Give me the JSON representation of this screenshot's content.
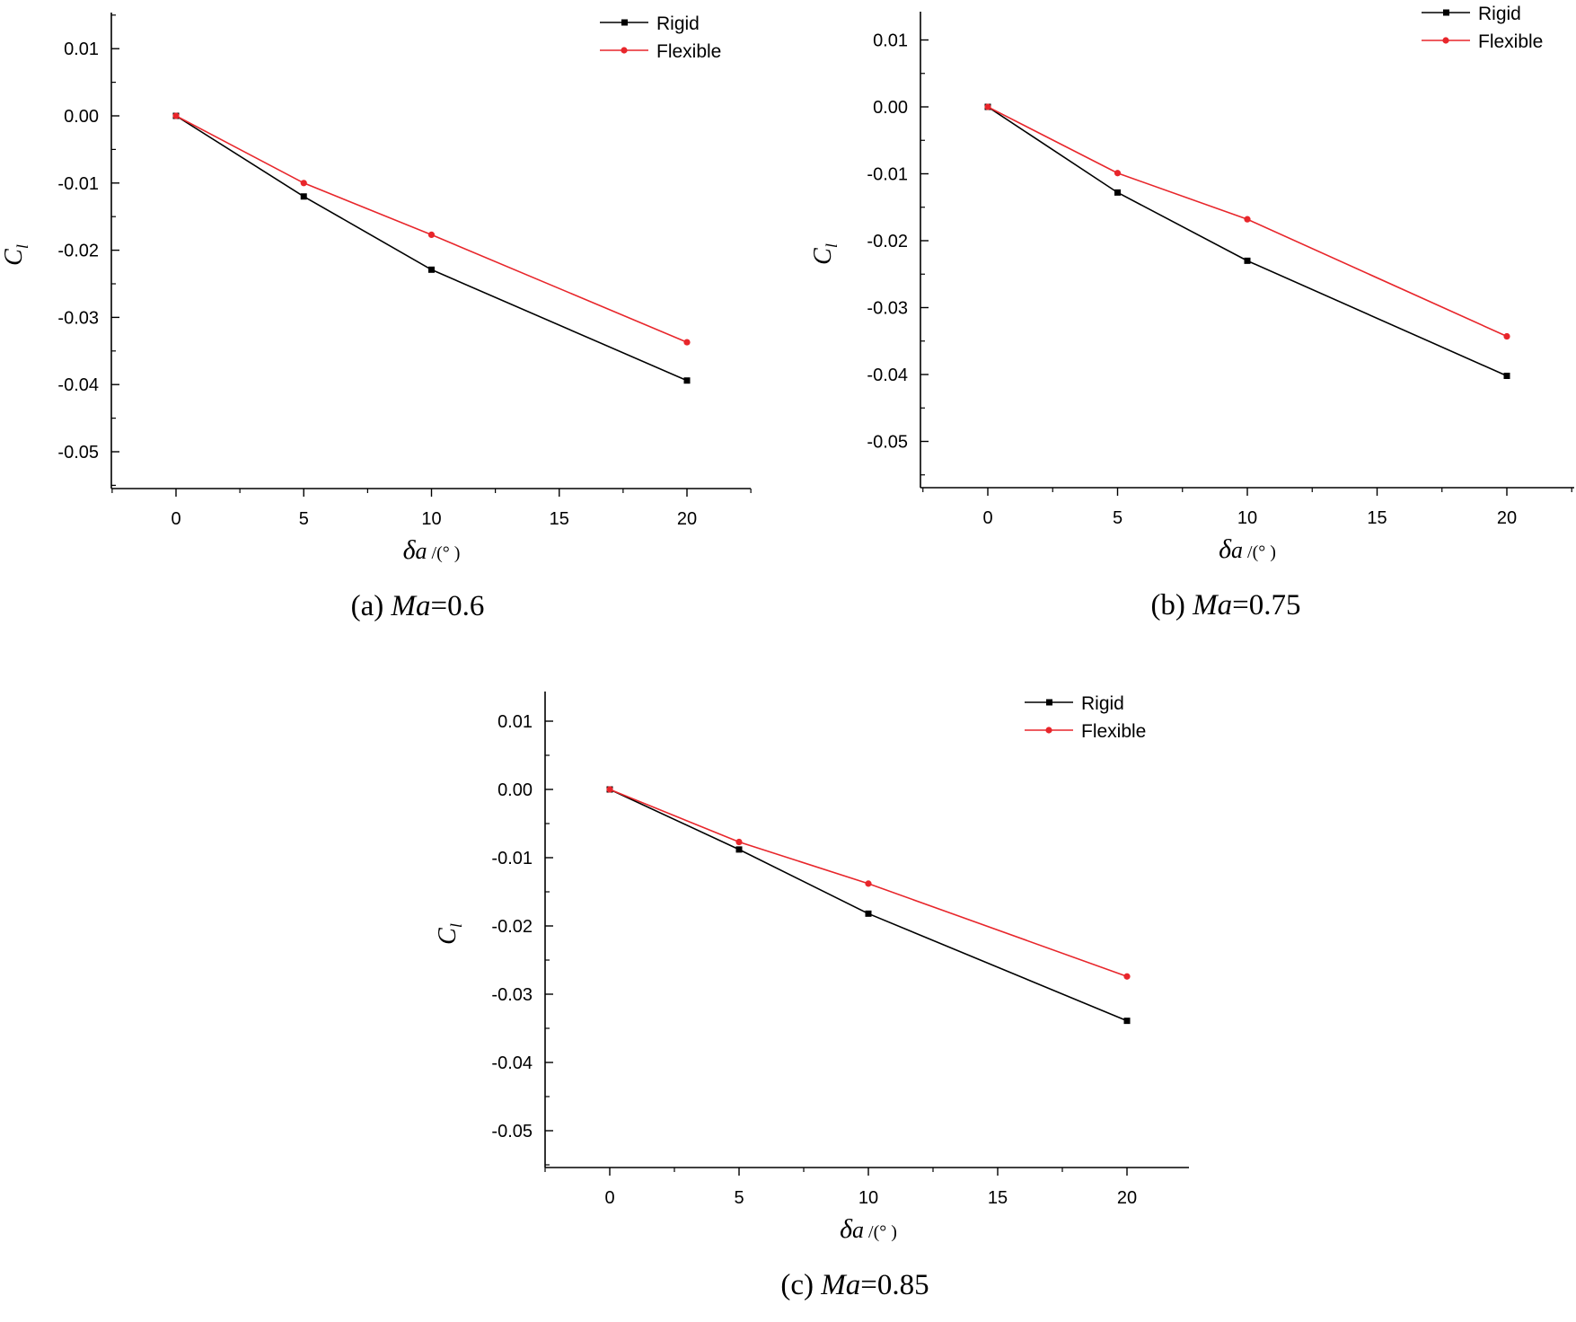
{
  "figure": {
    "panel_count": 3
  },
  "chart_data": [
    {
      "type": "line",
      "caption": {
        "prefix": "(a) ",
        "var": "Ma",
        "rest": "=0.6"
      },
      "xlabel": {
        "symbol": "δ",
        "sub": "a",
        "unit": " /(°  )"
      },
      "ylabel": {
        "symbol": "C",
        "sub": "l"
      },
      "xlim": [
        -2.5,
        22.5
      ],
      "ylim": [
        -0.055,
        0.015
      ],
      "xticks": [
        0,
        5,
        10,
        15,
        20
      ],
      "xtick_labels": [
        "0",
        "5",
        "10",
        "15",
        "20"
      ],
      "yticks": [
        0.01,
        0.0,
        -0.01,
        -0.02,
        -0.03,
        -0.04,
        -0.05
      ],
      "ytick_labels": [
        "0.01",
        "0.00",
        "-0.01",
        "-0.02",
        "-0.03",
        "-0.04",
        "-0.05"
      ],
      "legend_position": "top-right",
      "grid": false,
      "series": [
        {
          "name": "Rigid",
          "color": "#000000",
          "marker": "square",
          "x": [
            0,
            5,
            10,
            20
          ],
          "values": [
            0.0,
            -0.012,
            -0.0229,
            -0.0394
          ]
        },
        {
          "name": "Flexible",
          "color": "#e8262b",
          "marker": "circle",
          "x": [
            0,
            5,
            10,
            20
          ],
          "values": [
            0.0,
            -0.01,
            -0.0177,
            -0.0337
          ]
        }
      ]
    },
    {
      "type": "line",
      "caption": {
        "prefix": "(b) ",
        "var": "Ma",
        "rest": "=0.75"
      },
      "xlabel": {
        "symbol": "δ",
        "sub": "a",
        "unit": " /(°  )"
      },
      "ylabel": {
        "symbol": "C",
        "sub": "l"
      },
      "xlim": [
        -2.5,
        22.5
      ],
      "ylim": [
        -0.055,
        0.015
      ],
      "xticks": [
        0,
        5,
        10,
        15,
        20
      ],
      "xtick_labels": [
        "0",
        "5",
        "10",
        "15",
        "20"
      ],
      "yticks": [
        0.01,
        0.0,
        -0.01,
        -0.02,
        -0.03,
        -0.04,
        -0.05
      ],
      "ytick_labels": [
        "0.01",
        "0.00",
        "-0.01",
        "-0.02",
        "-0.03",
        "-0.04",
        "-0.05"
      ],
      "legend_position": "top-right",
      "grid": false,
      "series": [
        {
          "name": "Rigid",
          "color": "#000000",
          "marker": "square",
          "x": [
            0,
            5,
            10,
            20
          ],
          "values": [
            0.0,
            -0.0128,
            -0.023,
            -0.0402
          ]
        },
        {
          "name": "Flexible",
          "color": "#e8262b",
          "marker": "circle",
          "x": [
            0,
            5,
            10,
            20
          ],
          "values": [
            0.0,
            -0.0099,
            -0.0168,
            -0.0343
          ]
        }
      ]
    },
    {
      "type": "line",
      "caption": {
        "prefix": "(c) ",
        "var": "Ma",
        "rest": "=0.85"
      },
      "xlabel": {
        "symbol": "δ",
        "sub": "a",
        "unit": " /(°  )"
      },
      "ylabel": {
        "symbol": "C",
        "sub": "l"
      },
      "xlim": [
        -2.5,
        22.5
      ],
      "ylim": [
        -0.055,
        0.015
      ],
      "xticks": [
        0,
        5,
        10,
        15,
        20
      ],
      "xtick_labels": [
        "0",
        "5",
        "10",
        "15",
        "20"
      ],
      "yticks": [
        0.01,
        0.0,
        -0.01,
        -0.02,
        -0.03,
        -0.04,
        -0.05
      ],
      "ytick_labels": [
        "0.01",
        "0.00",
        "-0.01",
        "-0.02",
        "-0.03",
        "-0.04",
        "-0.05"
      ],
      "legend_position": "top-right",
      "grid": false,
      "series": [
        {
          "name": "Rigid",
          "color": "#000000",
          "marker": "square",
          "x": [
            0,
            5,
            10,
            20
          ],
          "values": [
            0.0,
            -0.0088,
            -0.0182,
            -0.0339
          ]
        },
        {
          "name": "Flexible",
          "color": "#e8262b",
          "marker": "circle",
          "x": [
            0,
            5,
            10,
            20
          ],
          "values": [
            0.0,
            -0.0077,
            -0.0138,
            -0.0274
          ]
        }
      ]
    }
  ]
}
